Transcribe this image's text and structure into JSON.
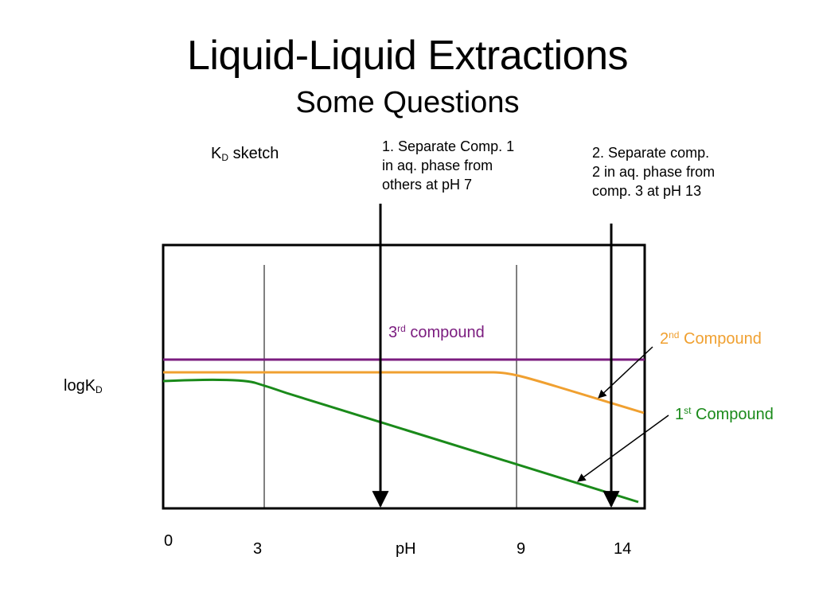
{
  "slide": {
    "title": "Liquid-Liquid Extractions",
    "subtitle": "Some Questions"
  },
  "diagram": {
    "kd_sketch": {
      "base": "K",
      "sub": "D",
      "rest": " sketch"
    },
    "y_label": {
      "base": "logK",
      "sub": "D"
    },
    "question_1": {
      "lines": [
        "1.  Separate Comp. 1",
        "in aq. phase from",
        "others at pH 7"
      ],
      "arrow_ph": 7
    },
    "question_2": {
      "lines": [
        "2.  Separate comp.",
        "2 in aq. phase from",
        "comp. 3 at pH 13"
      ],
      "arrow_ph": 13
    },
    "x_axis": {
      "zero": "0",
      "tick_3": "3",
      "label": "pH",
      "tick_9": "9",
      "tick_14": "14",
      "range": [
        0,
        14
      ]
    },
    "compounds": [
      {
        "num": "3",
        "ordinal": "rd",
        "label": " compound",
        "color": "#7b1c7f"
      },
      {
        "num": "2",
        "ordinal": "nd",
        "label": " Compound",
        "color": "#f0a030"
      },
      {
        "num": "1",
        "ordinal": "st",
        "label": " Compound",
        "color": "#1a8a1a"
      }
    ],
    "colors": {
      "compound_3": "#7b1c7f",
      "compound_2": "#f0a030",
      "compound_1": "#1a8a1a",
      "frame": "#000000"
    }
  }
}
